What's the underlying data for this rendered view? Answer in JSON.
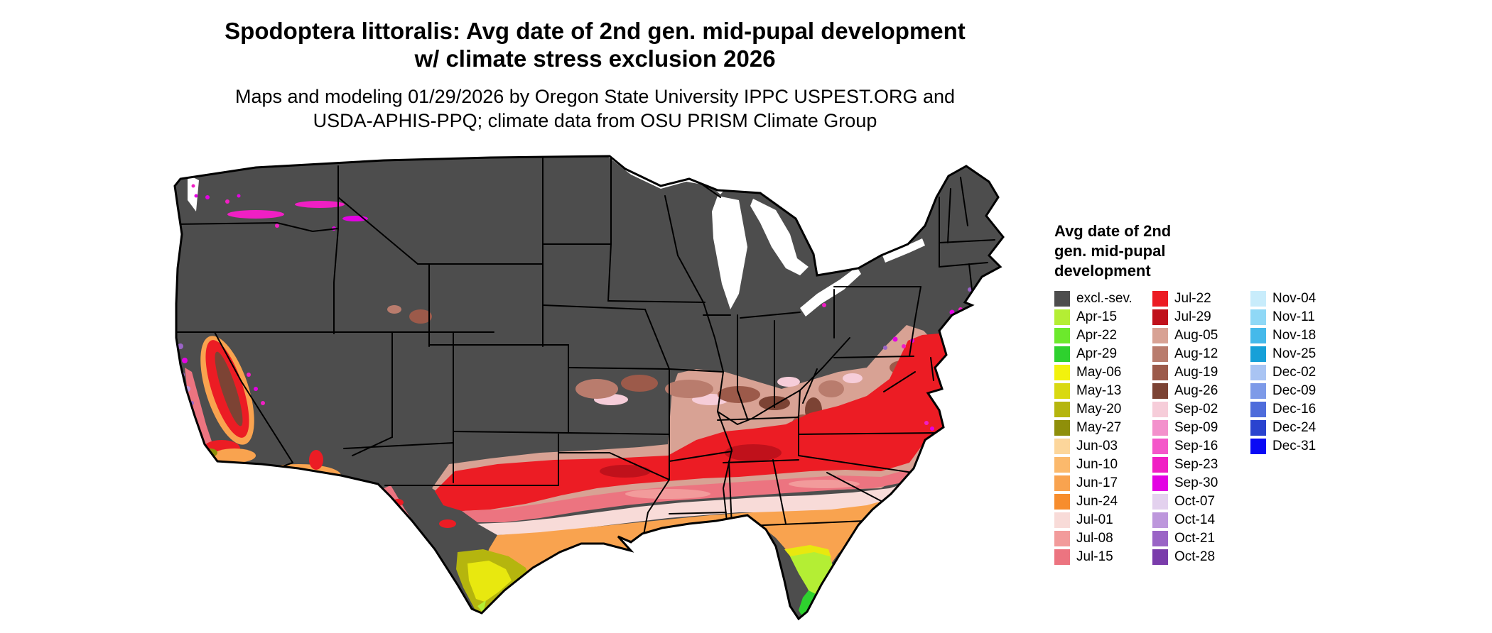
{
  "title": {
    "line1": "Spodoptera littoralis: Avg date of 2nd gen. mid-pupal development",
    "line2": "w/ climate stress exclusion 2026"
  },
  "subtitle": {
    "line1": "Maps and modeling 01/29/2026 by Oregon State University IPPC USPEST.ORG and",
    "line2": "USDA-APHIS-PPQ; climate data from OSU PRISM Climate Group"
  },
  "legend": {
    "title_lines": [
      "Avg date of 2nd",
      "gen. mid-pupal",
      "development"
    ],
    "columns": [
      {
        "entries": [
          {
            "label": "excl.-sev.",
            "color": "#4d4d4d"
          },
          {
            "label": "Apr-15",
            "color": "#b4ee34"
          },
          {
            "label": "Apr-22",
            "color": "#6ce92c"
          },
          {
            "label": "Apr-29",
            "color": "#2ed12e"
          },
          {
            "label": "May-06",
            "color": "#f2f20d"
          },
          {
            "label": "May-13",
            "color": "#d9d911"
          },
          {
            "label": "May-20",
            "color": "#b5b50e"
          },
          {
            "label": "May-27",
            "color": "#8f8f0a"
          },
          {
            "label": "Jun-03",
            "color": "#fcd69b"
          },
          {
            "label": "Jun-10",
            "color": "#fbb96c"
          },
          {
            "label": "Jun-17",
            "color": "#f9a34f"
          },
          {
            "label": "Jun-24",
            "color": "#f78d2d"
          },
          {
            "label": "Jul-01",
            "color": "#f8dbd8"
          },
          {
            "label": "Jul-08",
            "color": "#f29b9b"
          },
          {
            "label": "Jul-15",
            "color": "#ec7480"
          }
        ]
      },
      {
        "entries": [
          {
            "label": "Jul-22",
            "color": "#ec1c24"
          },
          {
            "label": "Jul-29",
            "color": "#c0111b"
          },
          {
            "label": "Aug-05",
            "color": "#d8a294"
          },
          {
            "label": "Aug-12",
            "color": "#b97c6d"
          },
          {
            "label": "Aug-19",
            "color": "#9c5a4a"
          },
          {
            "label": "Aug-26",
            "color": "#7c4334"
          },
          {
            "label": "Sep-02",
            "color": "#f6cdd9"
          },
          {
            "label": "Sep-09",
            "color": "#f391cc"
          },
          {
            "label": "Sep-16",
            "color": "#f457c9"
          },
          {
            "label": "Sep-23",
            "color": "#f01fc4"
          },
          {
            "label": "Sep-30",
            "color": "#e303e3"
          },
          {
            "label": "Oct-07",
            "color": "#e3d1ee"
          },
          {
            "label": "Oct-14",
            "color": "#bd97dc"
          },
          {
            "label": "Oct-21",
            "color": "#9a64c6"
          },
          {
            "label": "Oct-28",
            "color": "#7a3cab"
          }
        ]
      },
      {
        "entries": [
          {
            "label": "Nov-04",
            "color": "#c8ecfb"
          },
          {
            "label": "Nov-11",
            "color": "#8fd8f6"
          },
          {
            "label": "Nov-18",
            "color": "#45b9ea"
          },
          {
            "label": "Nov-25",
            "color": "#16a0d8"
          },
          {
            "label": "Dec-02",
            "color": "#a9c4f3"
          },
          {
            "label": "Dec-09",
            "color": "#7d9ae8"
          },
          {
            "label": "Dec-16",
            "color": "#4e6cdb"
          },
          {
            "label": "Dec-24",
            "color": "#2a43cf"
          },
          {
            "label": "Dec-31",
            "color": "#0a0af5"
          }
        ]
      }
    ]
  },
  "map": {
    "region": "continental United States",
    "base_category": "excl.-sev.",
    "base_color": "#4d4d4d",
    "state_border_color": "#000000",
    "water_color": "#ffffff"
  }
}
